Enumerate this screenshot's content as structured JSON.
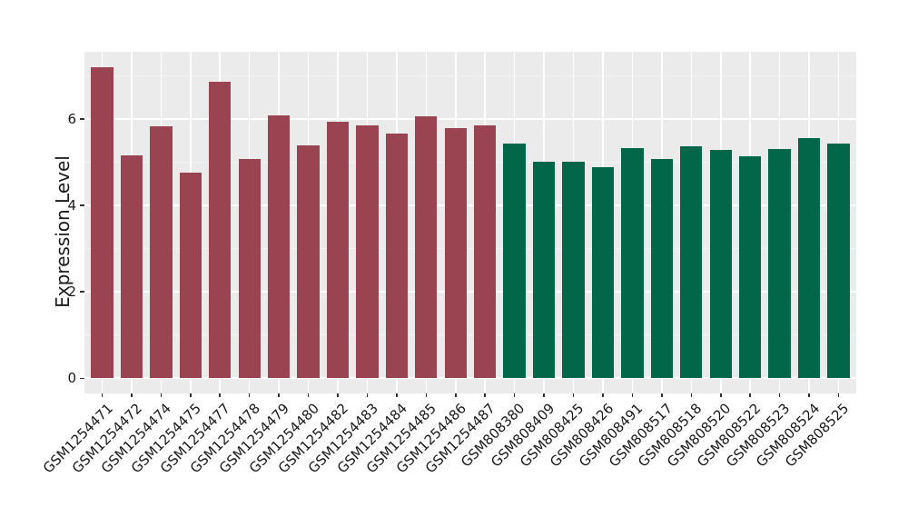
{
  "chart_data": {
    "type": "bar",
    "title": "",
    "xlabel": "",
    "ylabel": "Expression Level",
    "categories": [
      "GSM1254471",
      "GSM1254472",
      "GSM1254474",
      "GSM1254475",
      "GSM1254477",
      "GSM1254478",
      "GSM1254479",
      "GSM1254480",
      "GSM1254482",
      "GSM1254483",
      "GSM1254484",
      "GSM1254485",
      "GSM1254486",
      "GSM1254487",
      "GSM808380",
      "GSM808409",
      "GSM808425",
      "GSM808426",
      "GSM808491",
      "GSM808517",
      "GSM808518",
      "GSM808520",
      "GSM808522",
      "GSM808523",
      "GSM808524",
      "GSM808525"
    ],
    "values": [
      7.2,
      5.16,
      5.82,
      4.76,
      6.86,
      5.07,
      6.08,
      5.38,
      5.94,
      5.84,
      5.66,
      6.05,
      5.78,
      5.85,
      5.43,
      5.01,
      5.0,
      4.88,
      5.33,
      5.07,
      5.37,
      5.29,
      5.13,
      5.3,
      5.56,
      5.42
    ],
    "bar_colors": [
      "#9a4351",
      "#9a4351",
      "#9a4351",
      "#9a4351",
      "#9a4351",
      "#9a4351",
      "#9a4351",
      "#9a4351",
      "#9a4351",
      "#9a4351",
      "#9a4351",
      "#9a4351",
      "#9a4351",
      "#9a4351",
      "#026749",
      "#026749",
      "#026749",
      "#026749",
      "#026749",
      "#026749",
      "#026749",
      "#026749",
      "#026749",
      "#026749",
      "#026749",
      "#026749"
    ],
    "yticks": [
      0,
      2,
      4,
      6
    ],
    "minor_yticks": [
      1,
      3,
      5,
      7
    ],
    "ylim": [
      -0.35,
      7.55
    ],
    "grid": "horizontal major and minor lines, vertical major line per category",
    "legend": "none",
    "colors": {
      "figure_bg": "#ffffff",
      "panel_bg": "#ebebeb",
      "major_grid": "#ffffff",
      "minor_grid": "#f5f5f5",
      "axis_text": "#1a1a1a",
      "tick_mark": "#333333",
      "group_red": "#9a4351",
      "group_green": "#026749"
    }
  }
}
